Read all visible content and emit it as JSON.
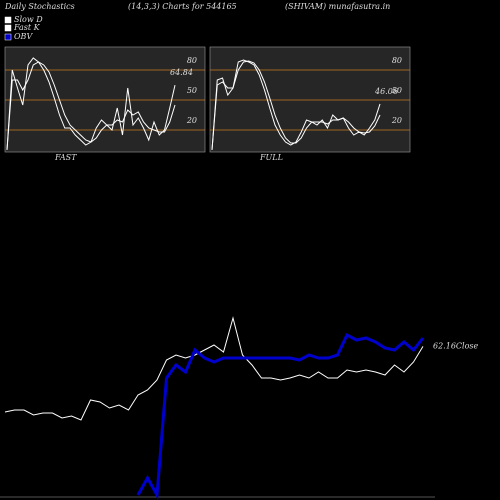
{
  "header": {
    "left": "Daily Stochastics",
    "center": "(14,3,3) Charts for 544165",
    "right": "(SHIVAM) munafasutra.in"
  },
  "chart_data": [
    {
      "type": "line",
      "title": "FAST",
      "annotation": "64.84",
      "ylim": [
        0,
        100
      ],
      "yticks": [
        20,
        50,
        80
      ],
      "grid": true,
      "series": [
        {
          "name": "Slow D",
          "color": "#ffffff",
          "values": [
            0,
            70,
            70,
            60,
            70,
            85,
            88,
            85,
            78,
            65,
            50,
            35,
            25,
            20,
            15,
            10,
            8,
            12,
            20,
            25,
            25,
            30,
            28,
            40,
            35,
            38,
            28,
            22,
            20,
            18,
            18,
            28,
            45
          ]
        },
        {
          "name": "Fast K",
          "color": "#ffffff",
          "values": [
            0,
            80,
            62,
            45,
            85,
            92,
            88,
            80,
            68,
            52,
            35,
            22,
            22,
            15,
            10,
            5,
            8,
            22,
            30,
            25,
            20,
            42,
            15,
            62,
            25,
            32,
            22,
            10,
            28,
            15,
            20,
            42,
            64.84
          ]
        }
      ]
    },
    {
      "type": "line",
      "title": "FULL",
      "annotation": "46.06",
      "ylim": [
        0,
        100
      ],
      "yticks": [
        20,
        50,
        80
      ],
      "grid": true,
      "series": [
        {
          "color": "#ffffff",
          "values": [
            0,
            65,
            68,
            62,
            62,
            80,
            88,
            89,
            87,
            80,
            68,
            52,
            35,
            22,
            12,
            7,
            7,
            12,
            22,
            28,
            28,
            28,
            26,
            30,
            30,
            32,
            28,
            22,
            18,
            17,
            18,
            24,
            35
          ]
        },
        {
          "color": "#ffffff",
          "values": [
            0,
            70,
            72,
            55,
            62,
            88,
            90,
            88,
            85,
            75,
            60,
            42,
            25,
            15,
            8,
            5,
            8,
            18,
            30,
            28,
            25,
            30,
            22,
            35,
            30,
            32,
            22,
            15,
            18,
            15,
            22,
            30,
            46.06
          ]
        }
      ]
    },
    {
      "type": "line",
      "annotation": "62.16Close",
      "ylim": [
        25,
        75
      ],
      "y2lim": [
        0,
        100
      ],
      "series": [
        {
          "color": "#ffffff",
          "values": [
            45.75,
            46.25,
            46.25,
            45,
            45.5,
            45.5,
            44.25,
            44.75,
            43.75,
            48.75,
            48.25,
            46.75,
            47.5,
            46.25,
            50,
            51.25,
            53.75,
            58.75,
            60,
            59.25,
            60,
            61.25,
            62.5,
            60.75,
            69.25,
            60,
            57.5,
            54.25,
            54.25,
            53.75,
            54.25,
            55,
            54.25,
            55.75,
            54.25,
            54.25,
            56.25,
            55.75,
            56.25,
            55.75,
            55,
            57.5,
            55.75,
            58.25,
            62.16
          ]
        },
        {
          "name": "OBV",
          "color": "#0000cc",
          "axis": "y2",
          "values": [
            null,
            null,
            null,
            null,
            null,
            null,
            null,
            null,
            null,
            null,
            null,
            null,
            null,
            null,
            0,
            8.5,
            0,
            58.5,
            65,
            61.5,
            72.5,
            68.5,
            66.5,
            68.5,
            68.5,
            68.5,
            68.5,
            68.5,
            68.5,
            68.5,
            68.5,
            67.5,
            70,
            68.5,
            68.5,
            70,
            80,
            77.5,
            78.5,
            76.5,
            73.5,
            72.5,
            76.5,
            72.5,
            78.5
          ]
        }
      ]
    }
  ]
}
